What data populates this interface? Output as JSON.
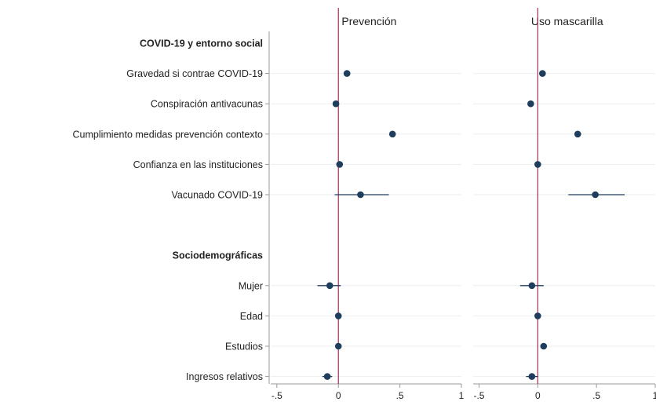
{
  "chart_data": {
    "type": "scatter",
    "subtype": "coefficient-plot",
    "rows": [
      {
        "label": "COVID-19 y entorno social",
        "header": true
      },
      {
        "label": "Gravedad si contrae COVID-19"
      },
      {
        "label": "Conspiración antivacunas"
      },
      {
        "label": "Cumplimiento medidas prevención contexto"
      },
      {
        "label": "Confianza en las instituciones"
      },
      {
        "label": "Vacunado COVID-19"
      },
      {
        "label": "",
        "spacer": true
      },
      {
        "label": "Sociodemográficas",
        "header": true
      },
      {
        "label": "Mujer"
      },
      {
        "label": "Edad"
      },
      {
        "label": "Estudios"
      },
      {
        "label": "Ingresos relativos"
      }
    ],
    "panels": [
      {
        "title": "Prevención",
        "xlim": [
          -0.55,
          1.0
        ],
        "xticks": [
          -0.5,
          0,
          0.5,
          1
        ],
        "xtick_labels": [
          "-.5",
          "0",
          ".5",
          "1"
        ],
        "points": [
          {
            "row": "Gravedad si contrae COVID-19",
            "estimate": 0.07,
            "ci": [
              0.05,
              0.09
            ]
          },
          {
            "row": "Conspiración antivacunas",
            "estimate": -0.02,
            "ci": [
              -0.04,
              0.0
            ]
          },
          {
            "row": "Cumplimiento medidas prevención contexto",
            "estimate": 0.44,
            "ci": [
              0.42,
              0.46
            ]
          },
          {
            "row": "Confianza en las instituciones",
            "estimate": 0.01,
            "ci": [
              -0.01,
              0.03
            ]
          },
          {
            "row": "Vacunado COVID-19",
            "estimate": 0.18,
            "ci": [
              -0.03,
              0.41
            ]
          },
          {
            "row": "Mujer",
            "estimate": -0.07,
            "ci": [
              -0.17,
              0.02
            ]
          },
          {
            "row": "Edad",
            "estimate": 0.0,
            "ci": [
              -0.01,
              0.01
            ]
          },
          {
            "row": "Estudios",
            "estimate": 0.0,
            "ci": [
              -0.01,
              0.01
            ]
          },
          {
            "row": "Ingresos relativos",
            "estimate": -0.09,
            "ci": [
              -0.13,
              -0.05
            ]
          }
        ]
      },
      {
        "title": "Uso mascarilla",
        "xlim": [
          -0.55,
          1.0
        ],
        "xticks": [
          -0.5,
          0,
          0.5,
          1
        ],
        "xtick_labels": [
          "-.5",
          "0",
          ".5",
          "1"
        ],
        "points": [
          {
            "row": "Gravedad si contrae COVID-19",
            "estimate": 0.04,
            "ci": [
              0.02,
              0.06
            ]
          },
          {
            "row": "Conspiración antivacunas",
            "estimate": -0.06,
            "ci": [
              -0.08,
              -0.04
            ]
          },
          {
            "row": "Cumplimiento medidas prevención contexto",
            "estimate": 0.34,
            "ci": [
              0.32,
              0.37
            ]
          },
          {
            "row": "Confianza en las instituciones",
            "estimate": 0.0,
            "ci": [
              -0.02,
              0.02
            ]
          },
          {
            "row": "Vacunado COVID-19",
            "estimate": 0.49,
            "ci": [
              0.26,
              0.74
            ]
          },
          {
            "row": "Mujer",
            "estimate": -0.05,
            "ci": [
              -0.15,
              0.05
            ]
          },
          {
            "row": "Edad",
            "estimate": 0.0,
            "ci": [
              -0.01,
              0.01
            ]
          },
          {
            "row": "Estudios",
            "estimate": 0.05,
            "ci": [
              0.03,
              0.07
            ]
          },
          {
            "row": "Ingresos relativos",
            "estimate": -0.05,
            "ci": [
              -0.1,
              0.0
            ]
          }
        ]
      }
    ],
    "reference_line": {
      "x": 0,
      "color": "#a0315a"
    },
    "colors": {
      "point": "#1f3d5c",
      "ci": "#1f3d5c",
      "axis": "#9a9a9a",
      "grid": "#eeeeee"
    },
    "grid": "horizontal",
    "legend": "none",
    "xlabel": "",
    "ylabel": ""
  }
}
